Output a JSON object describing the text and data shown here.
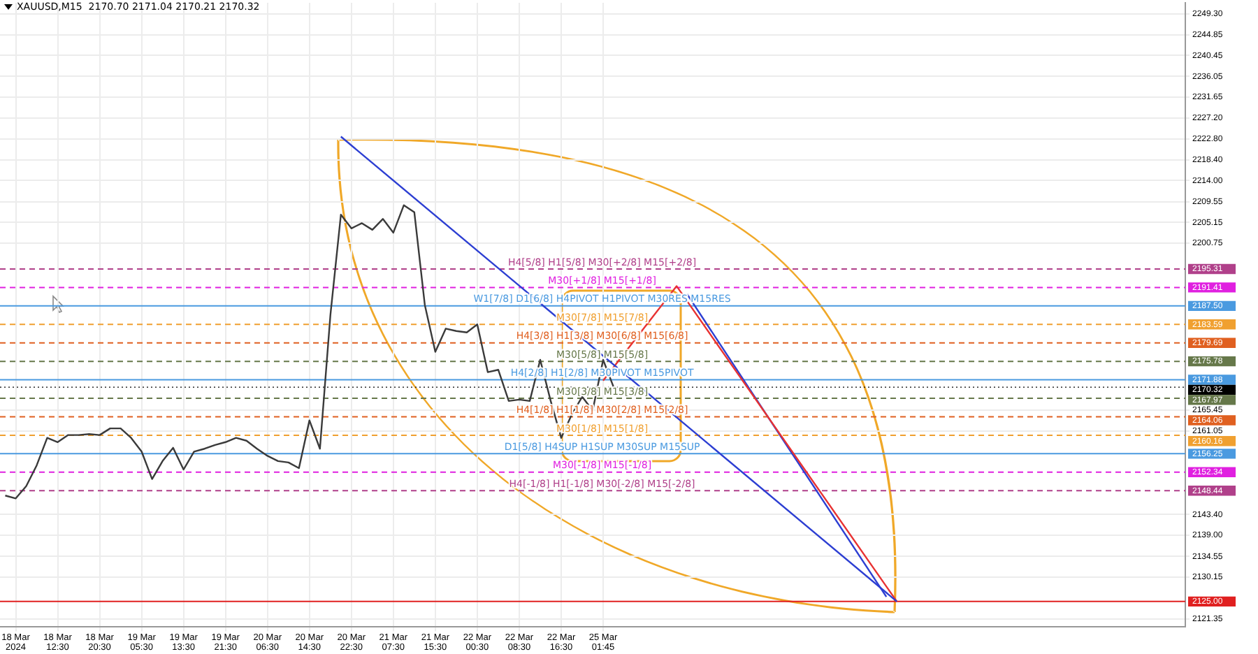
{
  "chart_data": {
    "type": "line",
    "title": "XAUUSD,M15  2170.70 2171.04 2170.21 2170.32",
    "categories": [
      null,
      "18 Mar 2024",
      null,
      null,
      null,
      "18 Mar 12:30",
      null,
      null,
      null,
      "18 Mar 20:30",
      null,
      null,
      null,
      "19 Mar 05:30",
      null,
      null,
      null,
      "19 Mar 13:30",
      null,
      null,
      null,
      "19 Mar 21:30",
      null,
      null,
      null,
      "20 Mar 06:30",
      null,
      null,
      null,
      "20 Mar 14:30",
      null,
      null,
      null,
      "20 Mar 22:30",
      null,
      null,
      null,
      "21 Mar 07:30",
      null,
      null,
      null,
      "21 Mar 15:30",
      null,
      null,
      null,
      "22 Mar 00:30",
      null,
      null,
      null,
      "22 Mar 08:30",
      null,
      null,
      null,
      "22 Mar 16:30",
      null,
      null,
      null,
      "25 Mar 01:45",
      null,
      null,
      null,
      null,
      null,
      null,
      null,
      null,
      null,
      null,
      null,
      null,
      null,
      null,
      null,
      null,
      null,
      null,
      null,
      null,
      null,
      null,
      null,
      null,
      null,
      null,
      null,
      null,
      null,
      null,
      null,
      null,
      null,
      null,
      null,
      null,
      null,
      null,
      null,
      null,
      null,
      null,
      null,
      null,
      null,
      null,
      null,
      null,
      null,
      null,
      null,
      null,
      null,
      null,
      null
    ],
    "series": [
      {
        "color": "#3a3a3a",
        "values": [
          2147.4,
          2146.8,
          2149.4,
          2153.8,
          2159.6,
          2158.7,
          2160.2,
          2160.2,
          2160.4,
          2160.2,
          2161.6,
          2161.6,
          2159.6,
          2156.7,
          2150.9,
          2154.7,
          2157.5,
          2152.9,
          2156.7,
          2157.3,
          2158.1,
          2158.7,
          2159.6,
          2159.0,
          2157.3,
          2155.8,
          2154.7,
          2154.4,
          2153.2,
          2163.3,
          2157.3,
          2185.6,
          2206.8,
          2203.9,
          2205.0,
          2203.6,
          2205.9,
          2203.0,
          2208.8,
          2207.3,
          2187.7,
          2177.8,
          2182.7,
          2182.2,
          2181.9,
          2183.6,
          2173.5,
          2174.0,
          2167.4,
          2167.7,
          2167.4,
          2176.1,
          2167.4,
          2159.6,
          2164.5,
          2168.3,
          2165.4,
          2176.1,
          2170.32,
          null,
          null,
          null,
          null,
          null,
          null,
          null,
          null,
          null,
          null,
          null,
          null,
          null,
          null,
          null,
          null,
          null,
          null,
          null,
          null,
          null,
          null,
          null,
          null,
          null,
          null,
          null,
          null,
          null,
          null,
          null,
          null,
          null,
          null,
          null,
          null,
          null,
          null,
          null,
          null,
          null,
          null,
          null,
          null,
          null,
          null,
          null,
          null,
          null,
          null,
          null,
          null,
          null,
          null
        ]
      },
      {
        "color": "#2c3ed2",
        "values": [
          null,
          null,
          null,
          null,
          null,
          null,
          null,
          null,
          null,
          null,
          null,
          null,
          null,
          null,
          null,
          null,
          null,
          null,
          null,
          null,
          null,
          null,
          null,
          null,
          null,
          null,
          null,
          null,
          null,
          null,
          null,
          null,
          2223.3,
          null,
          null,
          null,
          null,
          null,
          null,
          null,
          null,
          null,
          null,
          null,
          null,
          null,
          null,
          null,
          null,
          null,
          null,
          null,
          null,
          null,
          null,
          null,
          null,
          null,
          null,
          null,
          null,
          null,
          null,
          null,
          null,
          null,
          null,
          null,
          null,
          null,
          null,
          null,
          null,
          null,
          null,
          null,
          null,
          null,
          null,
          null,
          null,
          null,
          null,
          null,
          null,
          2125.0,
          null,
          null,
          null,
          null,
          null,
          null,
          null,
          null,
          null,
          null,
          null,
          null,
          null,
          null,
          null,
          null,
          null,
          null,
          null,
          null,
          null,
          null,
          null,
          null,
          null,
          null,
          null
        ]
      },
      {
        "color": "#e83232",
        "values": [
          null,
          null,
          null,
          null,
          null,
          null,
          null,
          null,
          null,
          null,
          null,
          null,
          null,
          null,
          null,
          null,
          null,
          null,
          null,
          null,
          null,
          null,
          null,
          null,
          null,
          null,
          null,
          null,
          null,
          null,
          null,
          null,
          null,
          null,
          null,
          null,
          null,
          null,
          null,
          null,
          null,
          null,
          null,
          null,
          null,
          null,
          null,
          null,
          null,
          null,
          null,
          null,
          null,
          null,
          null,
          null,
          null,
          2171.7,
          null,
          null,
          null,
          null,
          null,
          null,
          2191.7,
          null,
          null,
          null,
          null,
          null,
          null,
          null,
          null,
          null,
          null,
          null,
          null,
          null,
          null,
          null,
          null,
          null,
          null,
          null,
          null,
          2125.0,
          null,
          null,
          null,
          null,
          null,
          null,
          null,
          null,
          null,
          null,
          null,
          null,
          null,
          null,
          null,
          null,
          null,
          null,
          null,
          null,
          null,
          null,
          null,
          null,
          null,
          null,
          null
        ]
      },
      {
        "color": "#2c3ed2",
        "values": [
          null,
          null,
          null,
          null,
          null,
          null,
          null,
          null,
          null,
          null,
          null,
          null,
          null,
          null,
          null,
          null,
          null,
          null,
          null,
          null,
          null,
          null,
          null,
          null,
          null,
          null,
          null,
          null,
          null,
          null,
          null,
          null,
          null,
          null,
          null,
          null,
          null,
          null,
          null,
          null,
          null,
          null,
          null,
          null,
          null,
          null,
          null,
          null,
          null,
          null,
          null,
          null,
          null,
          null,
          null,
          null,
          null,
          null,
          null,
          null,
          null,
          null,
          null,
          null,
          null,
          2190.0,
          null,
          null,
          null,
          null,
          null,
          null,
          null,
          null,
          null,
          null,
          null,
          null,
          null,
          null,
          null,
          null,
          null,
          null,
          2126.0,
          null,
          null,
          null,
          null,
          null,
          null,
          null,
          null,
          null,
          null,
          null,
          null,
          null,
          null,
          null,
          null,
          null,
          null,
          null,
          null,
          null,
          null,
          null,
          null,
          null,
          null,
          null,
          null
        ]
      }
    ],
    "ylim": [
      2119.6,
      2251.6
    ],
    "yticks": [
      {
        "value": 2249.3,
        "label": "2249.30"
      },
      {
        "value": 2244.85,
        "label": "2244.85"
      },
      {
        "value": 2240.45,
        "label": "2240.45"
      },
      {
        "value": 2236.05,
        "label": "2236.05"
      },
      {
        "value": 2231.65,
        "label": "2231.65"
      },
      {
        "value": 2227.2,
        "label": "2227.20"
      },
      {
        "value": 2222.8,
        "label": "2222.80"
      },
      {
        "value": 2218.4,
        "label": "2218.40"
      },
      {
        "value": 2214.0,
        "label": "2214.00"
      },
      {
        "value": 2209.55,
        "label": "2209.55"
      },
      {
        "value": 2205.15,
        "label": "2205.15"
      },
      {
        "value": 2200.75,
        "label": "2200.75"
      },
      {
        "value": 2165.45,
        "label": "2165.45"
      },
      {
        "value": 2161.05,
        "label": "2161.05"
      },
      {
        "value": 2143.4,
        "label": "2143.40"
      },
      {
        "value": 2139.0,
        "label": "2139.00"
      },
      {
        "value": 2134.55,
        "label": "2134.55"
      },
      {
        "value": 2130.15,
        "label": "2130.15"
      },
      {
        "value": 2121.35,
        "label": "2121.35"
      }
    ],
    "ref_lines": [
      {
        "axis": "y",
        "value": 2195.31,
        "label": "2195.31",
        "color": "#b0408a",
        "line_style": "dashed"
      },
      {
        "axis": "y",
        "value": 2191.41,
        "label": "2191.41",
        "color": "#e020e0",
        "line_style": "dashed"
      },
      {
        "axis": "y",
        "value": 2187.5,
        "label": "2187.50",
        "color": "#4a9ae0",
        "line_style": "solid"
      },
      {
        "axis": "y",
        "value": 2183.59,
        "label": "2183.59",
        "color": "#f0a030",
        "line_style": "dashed"
      },
      {
        "axis": "y",
        "value": 2179.69,
        "label": "2179.69",
        "color": "#e06020",
        "line_style": "dashed"
      },
      {
        "axis": "y",
        "value": 2175.78,
        "label": "2175.78",
        "color": "#66784a",
        "line_style": "dashed"
      },
      {
        "axis": "y",
        "value": 2171.88,
        "label": "2171.88",
        "color": "#4a9ae0",
        "line_style": "solid"
      },
      {
        "axis": "y",
        "value": 2170.32,
        "label": "2170.32",
        "color": "#000000",
        "line_style": "dotted"
      },
      {
        "axis": "y",
        "value": 2167.97,
        "label": "2167.97",
        "color": "#66784a",
        "line_style": "dashed"
      },
      {
        "axis": "y",
        "value": 2164.06,
        "label": "2164.06",
        "color": "#e06020",
        "line_style": "dashed"
      },
      {
        "axis": "y",
        "value": 2160.16,
        "label": "2160.16",
        "color": "#f0a030",
        "line_style": "dashed"
      },
      {
        "axis": "y",
        "value": 2156.25,
        "label": "2156.25",
        "color": "#4a9ae0",
        "line_style": "solid"
      },
      {
        "axis": "y",
        "value": 2152.34,
        "label": "2152.34",
        "color": "#e020e0",
        "line_style": "dashed"
      },
      {
        "axis": "y",
        "value": 2148.44,
        "label": "2148.44",
        "color": "#b0408a",
        "line_style": "dashed"
      },
      {
        "axis": "y",
        "value": 2125.0,
        "label": "2125.00",
        "color": "#e02020",
        "line_style": "solid"
      }
    ],
    "annotations": [
      {
        "text": "H4[5/8] H1[5/8] M30[+2/8] M15[+2/8]",
        "y": 2195.31
      },
      {
        "text": "M30[+1/8] M15[+1/8]",
        "y": 2191.41
      },
      {
        "text": "W1[7/8] D1[6/8] H4PIVOT H1PIVOT M30RES M15RES",
        "y": 2187.5
      },
      {
        "text": "M30[7/8] M15[7/8]",
        "y": 2183.59
      },
      {
        "text": "H4[3/8] H1[3/8] M30[6/8] M15[6/8]",
        "y": 2179.69
      },
      {
        "text": "M30[5/8] M15[5/8]",
        "y": 2175.78
      },
      {
        "text": "H4[2/8] H1[2/8] M30PIVOT M15PIVOT",
        "y": 2171.88
      },
      {
        "text": "M30[3/8] M15[3/8]",
        "y": 2167.97
      },
      {
        "text": "H4[1/8] H1[1/8] M30[2/8] M15[2/8]",
        "y": 2164.06
      },
      {
        "text": "M30[1/8] M15[1/8]",
        "y": 2160.16
      },
      {
        "text": "D1[5/8] H4SUP H1SUP M30SUP M15SUP",
        "y": 2156.25
      },
      {
        "text": "M30[-1/8] M15[-1/8]",
        "y": 2152.34
      },
      {
        "text": "H4[-1/8] H1[-1/8] M30[-2/8] M15[-2/8]",
        "y": 2148.44
      }
    ],
    "grid": true,
    "legend": false,
    "marker": "none"
  }
}
